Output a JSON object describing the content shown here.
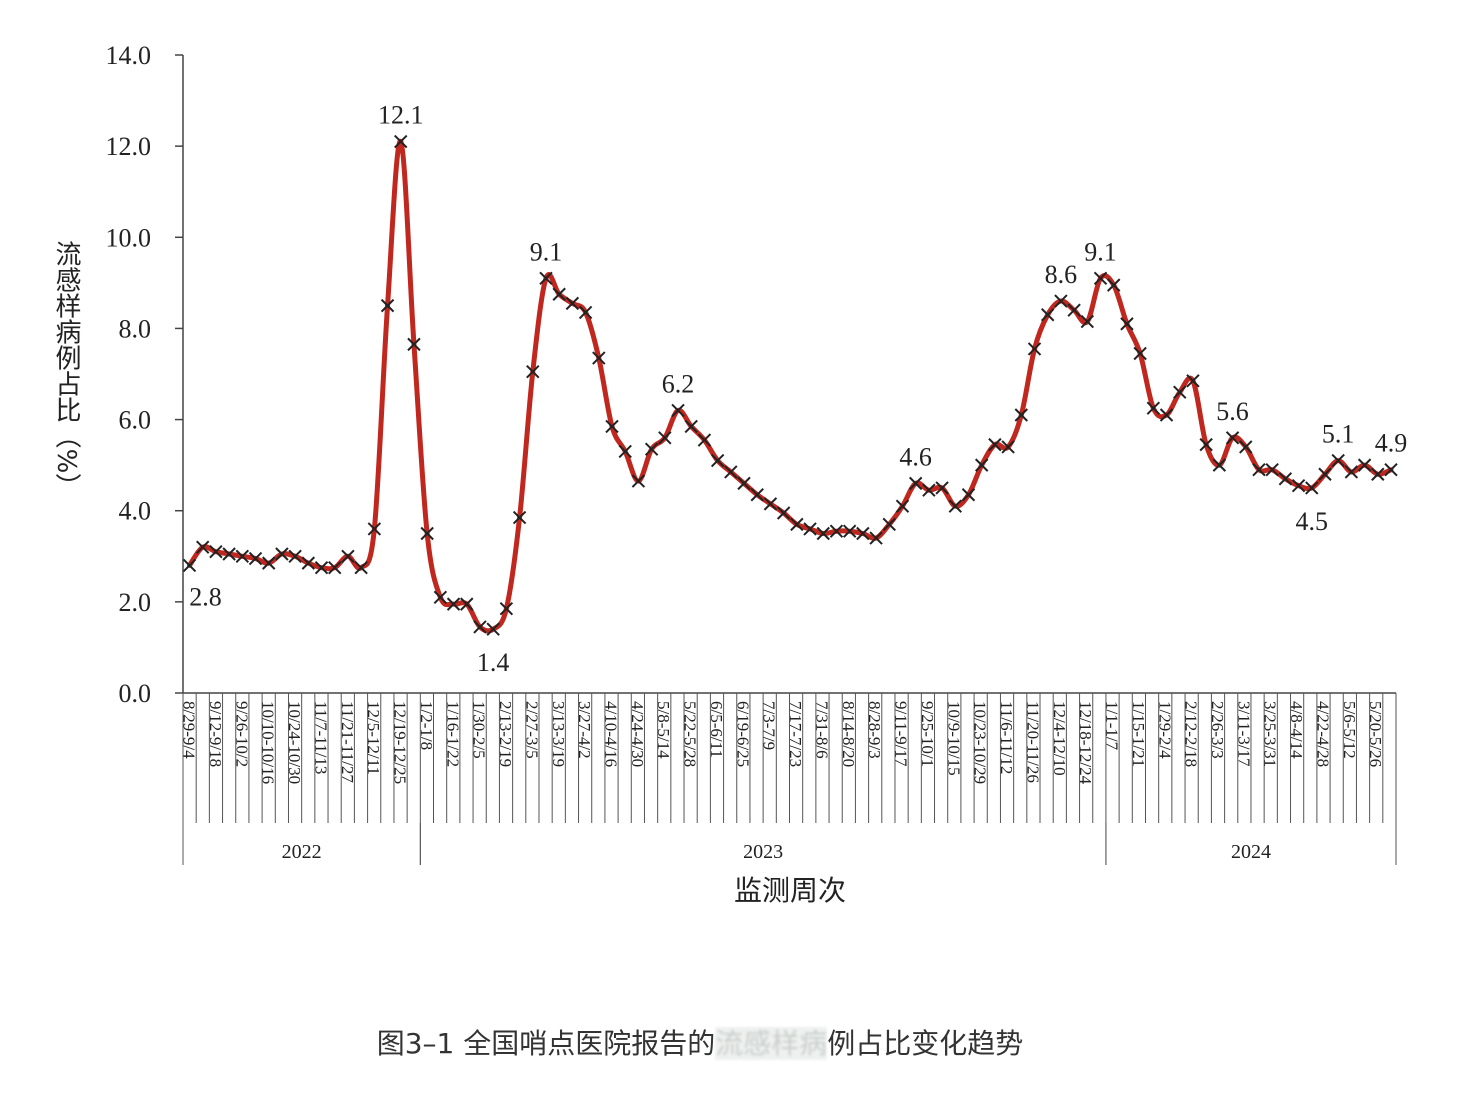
{
  "chart_data": {
    "type": "line",
    "ylabel": "流感样病例占比（%）",
    "xlabel": "监测周次",
    "ylim": [
      0,
      14
    ],
    "yticks": [
      "0.0",
      "2.0",
      "4.0",
      "6.0",
      "8.0",
      "10.0",
      "12.0",
      "14.0"
    ],
    "line_color": "#c0271e",
    "marker_color": "#222222",
    "x_labels": [
      "8/29-9/4",
      "9/12-9/18",
      "9/26-10/2",
      "10/10-10/16",
      "10/24-10/30",
      "11/7-11/13",
      "11/21-11/27",
      "12/5-12/11",
      "12/19-12/25",
      "1/2-1/8",
      "1/16-1/22",
      "1/30-2/5",
      "2/13-2/19",
      "2/27-3/5",
      "3/13-3/19",
      "3/27-4/2",
      "4/10-4/16",
      "4/24-4/30",
      "5/8-5/14",
      "5/22-5/28",
      "6/5-6/11",
      "6/19-6/25",
      "7/3-7/9",
      "7/17-7/23",
      "7/31-8/6",
      "8/14-8/20",
      "8/28-9/3",
      "9/11-9/17",
      "9/25-10/1",
      "10/9-10/15",
      "10/23-10/29",
      "11/6-11/12",
      "11/20-11/26",
      "12/4-12/10",
      "12/18-12/24",
      "1/1-1/7",
      "1/15-1/21",
      "1/29-2/4",
      "2/12-2/18",
      "2/26-3/3",
      "3/11-3/17",
      "3/25-3/31",
      "4/8-4/14",
      "4/22-4/28",
      "5/6-5/12",
      "5/20-5/26"
    ],
    "years": [
      {
        "label": "2022",
        "start": 0,
        "end": 18
      },
      {
        "label": "2023",
        "start": 18,
        "end": 70
      },
      {
        "label": "2024",
        "start": 70,
        "end": 92
      }
    ],
    "series": [
      {
        "values": [
          2.8,
          3.2,
          3.1,
          3.05,
          3.0,
          2.95,
          2.85,
          3.05,
          3.0,
          2.85,
          2.75,
          2.75,
          3.0,
          2.75,
          3.6,
          8.5,
          12.1,
          7.65,
          3.5,
          2.1,
          1.95,
          1.95,
          1.45,
          1.4,
          1.85,
          3.85,
          7.05,
          9.1,
          8.75,
          8.55,
          8.35,
          7.35,
          5.85,
          5.3,
          4.65,
          5.35,
          5.6,
          6.2,
          5.85,
          5.55,
          5.1,
          4.85,
          4.6,
          4.35,
          4.15,
          3.95,
          3.7,
          3.6,
          3.5,
          3.55,
          3.55,
          3.5,
          3.4,
          3.7,
          4.1,
          4.6,
          4.45,
          4.5,
          4.1,
          4.35,
          5.0,
          5.45,
          5.4,
          6.1,
          7.55,
          8.3,
          8.6,
          8.4,
          8.15,
          9.1,
          8.95,
          8.1,
          7.45,
          6.25,
          6.1,
          6.6,
          6.85,
          5.45,
          5.0,
          5.6,
          5.4,
          4.9,
          4.9,
          4.7,
          4.55,
          4.5,
          4.8,
          5.1,
          4.85,
          5.0,
          4.8,
          4.9
        ]
      }
    ],
    "annotations": [
      {
        "i": 0,
        "text": "2.8",
        "pos": "below"
      },
      {
        "i": 16,
        "text": "12.1",
        "pos": "above"
      },
      {
        "i": 23,
        "text": "1.4",
        "pos": "below"
      },
      {
        "i": 27,
        "text": "9.1",
        "pos": "above"
      },
      {
        "i": 37,
        "text": "6.2",
        "pos": "above"
      },
      {
        "i": 55,
        "text": "4.6",
        "pos": "above"
      },
      {
        "i": 66,
        "text": "8.6",
        "pos": "above"
      },
      {
        "i": 69,
        "text": "9.1",
        "pos": "above"
      },
      {
        "i": 79,
        "text": "5.6",
        "pos": "above"
      },
      {
        "i": 85,
        "text": "4.5",
        "pos": "below"
      },
      {
        "i": 87,
        "text": "5.1",
        "pos": "above"
      },
      {
        "i": 91,
        "text": "4.9",
        "pos": "above"
      }
    ]
  },
  "caption": {
    "part1": "图3–1 全国哨点医院报告的",
    "part2": "流感样病",
    "part3": "例占比变化趋势"
  }
}
